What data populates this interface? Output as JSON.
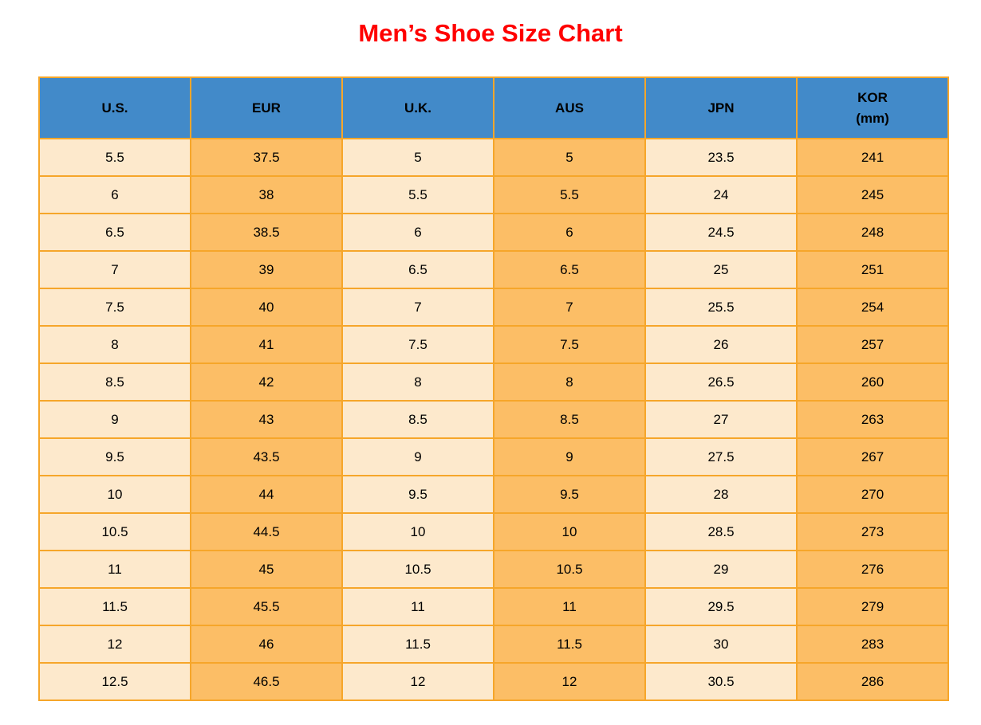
{
  "title": "Men’s Shoe Size Chart",
  "colors": {
    "title_red": "#FF0000",
    "header_blue": "#428AC9",
    "cell_cream": "#FDE9CC",
    "cell_orange": "#FCBE66",
    "grid_orange": "#F6A62A",
    "text_black": "#000000",
    "page_bg": "#FFFFFF"
  },
  "table": {
    "columns": [
      "U.S.",
      "EUR",
      "U.K.",
      "AUS",
      "JPN",
      "KOR\n(mm)"
    ],
    "column_keys": [
      "us",
      "eur",
      "uk",
      "aus",
      "jpn",
      "kor"
    ],
    "rows": [
      [
        "5.5",
        "37.5",
        "5",
        "5",
        "23.5",
        "241"
      ],
      [
        "6",
        "38",
        "5.5",
        "5.5",
        "24",
        "245"
      ],
      [
        "6.5",
        "38.5",
        "6",
        "6",
        "24.5",
        "248"
      ],
      [
        "7",
        "39",
        "6.5",
        "6.5",
        "25",
        "251"
      ],
      [
        "7.5",
        "40",
        "7",
        "7",
        "25.5",
        "254"
      ],
      [
        "8",
        "41",
        "7.5",
        "7.5",
        "26",
        "257"
      ],
      [
        "8.5",
        "42",
        "8",
        "8",
        "26.5",
        "260"
      ],
      [
        "9",
        "43",
        "8.5",
        "8.5",
        "27",
        "263"
      ],
      [
        "9.5",
        "43.5",
        "9",
        "9",
        "27.5",
        "267"
      ],
      [
        "10",
        "44",
        "9.5",
        "9.5",
        "28",
        "270"
      ],
      [
        "10.5",
        "44.5",
        "10",
        "10",
        "28.5",
        "273"
      ],
      [
        "11",
        "45",
        "10.5",
        "10.5",
        "29",
        "276"
      ],
      [
        "11.5",
        "45.5",
        "11",
        "11",
        "29.5",
        "279"
      ],
      [
        "12",
        "46",
        "11.5",
        "11.5",
        "30",
        "283"
      ],
      [
        "12.5",
        "46.5",
        "12",
        "12",
        "30.5",
        "286"
      ]
    ]
  },
  "chart_data": {
    "type": "table",
    "title": "Men’s Shoe Size Chart",
    "columns": [
      "U.S.",
      "EUR",
      "U.K.",
      "AUS",
      "JPN",
      "KOR (mm)"
    ],
    "rows": [
      [
        5.5,
        37.5,
        5,
        5,
        23.5,
        241
      ],
      [
        6,
        38,
        5.5,
        5.5,
        24,
        245
      ],
      [
        6.5,
        38.5,
        6,
        6,
        24.5,
        248
      ],
      [
        7,
        39,
        6.5,
        6.5,
        25,
        251
      ],
      [
        7.5,
        40,
        7,
        7,
        25.5,
        254
      ],
      [
        8,
        41,
        7.5,
        7.5,
        26,
        257
      ],
      [
        8.5,
        42,
        8,
        8,
        26.5,
        260
      ],
      [
        9,
        43,
        8.5,
        8.5,
        27,
        263
      ],
      [
        9.5,
        43.5,
        9,
        9,
        27.5,
        267
      ],
      [
        10,
        44,
        9.5,
        9.5,
        28,
        270
      ],
      [
        10.5,
        44.5,
        10,
        10,
        28.5,
        273
      ],
      [
        11,
        45,
        10.5,
        10.5,
        29,
        276
      ],
      [
        11.5,
        45.5,
        11,
        11,
        29.5,
        279
      ],
      [
        12,
        46,
        11.5,
        11.5,
        30,
        283
      ],
      [
        12.5,
        46.5,
        12,
        12,
        30.5,
        286
      ]
    ],
    "layout": {
      "header_fill": "#428AC9",
      "odd_column_fill": "#FDE9CC",
      "even_column_fill": "#FCBE66",
      "grid_color": "#F6A62A",
      "title_color": "#FF0000"
    }
  }
}
